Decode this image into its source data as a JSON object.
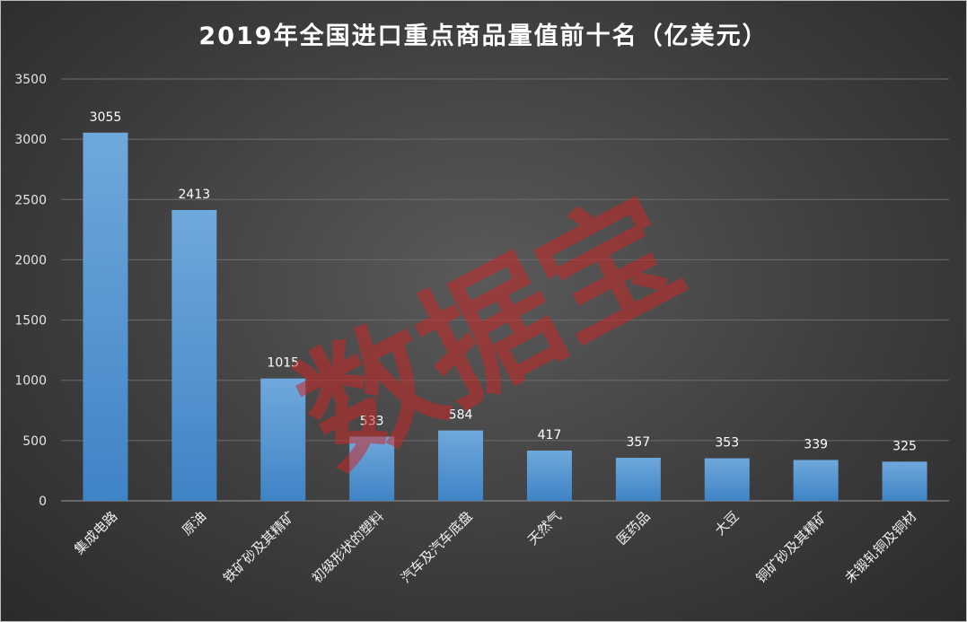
{
  "chart_data": {
    "type": "bar",
    "title": "2019年全国进口重点商品量值前十名（亿美元）",
    "categories": [
      "集成电路",
      "原油",
      "铁矿砂及其精矿",
      "初级形状的塑料",
      "汽车及汽车底盘",
      "天然气",
      "医药品",
      "大豆",
      "铜矿砂及其精矿",
      "未锻轧铜及铜材"
    ],
    "values": [
      3055,
      2413,
      1015,
      533,
      584,
      417,
      357,
      353,
      339,
      325
    ],
    "xlabel": "",
    "ylabel": "",
    "ylim": [
      0,
      3500
    ],
    "yticks": [
      0,
      500,
      1000,
      1500,
      2000,
      2500,
      3000,
      3500
    ],
    "grid": true,
    "legend": "none",
    "bar_color": "#5b9bd5",
    "data_labels": true
  },
  "watermark": "数据宝"
}
